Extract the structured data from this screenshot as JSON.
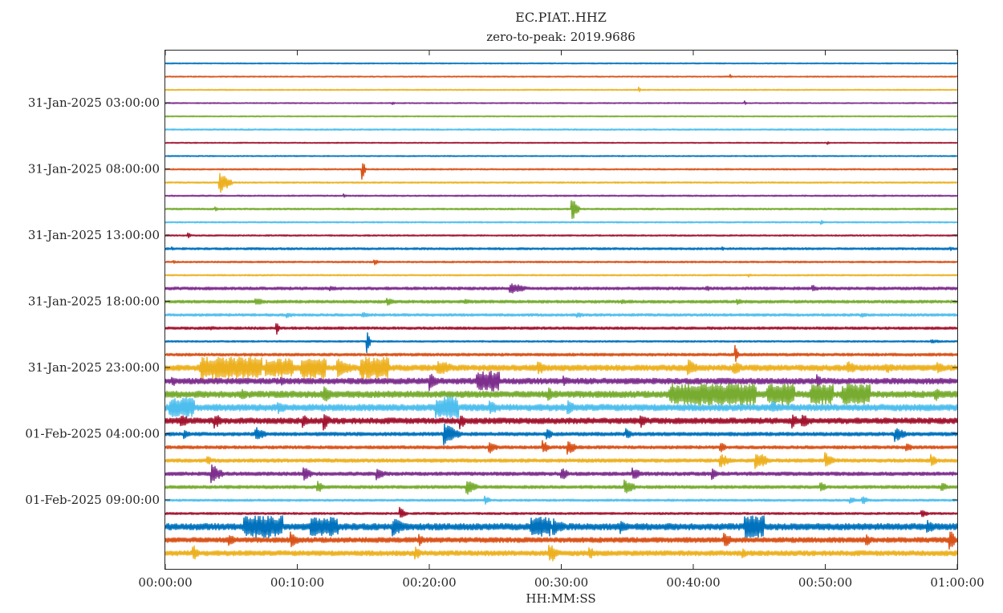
{
  "chart_data": {
    "type": "line",
    "subtype": "helicorder",
    "title": "EC.PIAT..HHZ",
    "subtitle": "zero-to-peak:  2019.9686",
    "xlabel": "HH:MM:SS",
    "ylabel": "",
    "x_tick_labels": [
      "00:00:00",
      "00:10:00",
      "00:20:00",
      "00:30:00",
      "00:40:00",
      "00:50:00",
      "01:00:00"
    ],
    "x_range_minutes": [
      0,
      60
    ],
    "row_duration_minutes": 60,
    "num_rows": 38,
    "y_tick_labels": [
      {
        "row": 3,
        "label": "31-Jan-2025 03:00:00"
      },
      {
        "row": 8,
        "label": "31-Jan-2025 08:00:00"
      },
      {
        "row": 13,
        "label": "31-Jan-2025 13:00:00"
      },
      {
        "row": 18,
        "label": "31-Jan-2025 18:00:00"
      },
      {
        "row": 23,
        "label": "31-Jan-2025 23:00:00"
      },
      {
        "row": 28,
        "label": "01-Feb-2025 04:00:00"
      },
      {
        "row": 33,
        "label": "01-Feb-2025 09:00:00"
      }
    ],
    "row_colors": [
      "#0072BD",
      "#D95319",
      "#EDB120",
      "#7E2F8E",
      "#77AC30",
      "#4DBEEE",
      "#A2142F"
    ],
    "grid": false,
    "legend": "none",
    "rows": [
      {
        "row": 0,
        "level": 0.08,
        "events": []
      },
      {
        "row": 1,
        "level": 0.08,
        "events": [
          {
            "t": 42.8,
            "amp": 0.3,
            "dur": 0.2
          }
        ]
      },
      {
        "row": 2,
        "level": 0.08,
        "events": [
          {
            "t": 35.9,
            "amp": 0.35,
            "dur": 0.2
          }
        ]
      },
      {
        "row": 3,
        "level": 0.08,
        "events": [
          {
            "t": 17.2,
            "amp": 0.3,
            "dur": 0.2
          },
          {
            "t": 43.9,
            "amp": 0.3,
            "dur": 0.2
          }
        ]
      },
      {
        "row": 4,
        "level": 0.08,
        "events": []
      },
      {
        "row": 5,
        "level": 0.1,
        "events": []
      },
      {
        "row": 6,
        "level": 0.08,
        "events": [
          {
            "t": 50.2,
            "amp": 0.25,
            "dur": 0.2
          }
        ]
      },
      {
        "row": 7,
        "level": 0.08,
        "events": []
      },
      {
        "row": 8,
        "level": 0.1,
        "events": [
          {
            "t": 14.9,
            "amp": 1.5,
            "dur": 0.3
          }
        ]
      },
      {
        "row": 9,
        "level": 0.1,
        "events": [
          {
            "t": 4.1,
            "amp": 1.5,
            "dur": 1.0
          }
        ]
      },
      {
        "row": 10,
        "level": 0.1,
        "events": [
          {
            "t": 13.5,
            "amp": 0.3,
            "dur": 0.3
          }
        ]
      },
      {
        "row": 11,
        "level": 0.12,
        "events": [
          {
            "t": 30.8,
            "amp": 1.6,
            "dur": 0.6
          },
          {
            "t": 3.8,
            "amp": 0.3,
            "dur": 0.3
          }
        ]
      },
      {
        "row": 12,
        "level": 0.1,
        "events": [
          {
            "t": 49.7,
            "amp": 0.3,
            "dur": 0.3
          }
        ]
      },
      {
        "row": 13,
        "level": 0.1,
        "events": [
          {
            "t": 1.7,
            "amp": 0.5,
            "dur": 0.3
          }
        ]
      },
      {
        "row": 14,
        "level": 0.15,
        "events": [
          {
            "t": 0.5,
            "amp": 0.3,
            "dur": 0.3
          },
          {
            "t": 42.2,
            "amp": 0.3,
            "dur": 0.3
          },
          {
            "t": 59.5,
            "amp": 0.3,
            "dur": 0.3
          }
        ]
      },
      {
        "row": 15,
        "level": 0.12,
        "events": [
          {
            "t": 15.8,
            "amp": 0.5,
            "dur": 0.4
          },
          {
            "t": 0.6,
            "amp": 0.25,
            "dur": 0.3
          }
        ]
      },
      {
        "row": 16,
        "level": 0.1,
        "events": [
          {
            "t": 44.2,
            "amp": 0.25,
            "dur": 0.3
          }
        ]
      },
      {
        "row": 17,
        "level": 0.2,
        "events": [
          {
            "t": 26.1,
            "amp": 0.8,
            "dur": 1.5
          },
          {
            "t": 12.5,
            "amp": 0.4,
            "dur": 0.8
          },
          {
            "t": 49.0,
            "amp": 0.5,
            "dur": 0.8
          },
          {
            "t": 41.0,
            "amp": 0.35,
            "dur": 0.8
          }
        ]
      },
      {
        "row": 18,
        "level": 0.2,
        "events": [
          {
            "t": 6.8,
            "amp": 0.5,
            "dur": 1.0
          },
          {
            "t": 16.8,
            "amp": 0.5,
            "dur": 1.0
          },
          {
            "t": 22.7,
            "amp": 0.4,
            "dur": 0.8
          },
          {
            "t": 34.6,
            "amp": 0.35,
            "dur": 0.8
          },
          {
            "t": 43.3,
            "amp": 0.4,
            "dur": 0.8
          }
        ]
      },
      {
        "row": 19,
        "level": 0.18,
        "events": [
          {
            "t": 9.2,
            "amp": 0.4,
            "dur": 0.8
          },
          {
            "t": 14.9,
            "amp": 0.4,
            "dur": 0.8
          },
          {
            "t": 31.2,
            "amp": 0.4,
            "dur": 0.8
          },
          {
            "t": 52.7,
            "amp": 0.4,
            "dur": 0.8
          }
        ]
      },
      {
        "row": 20,
        "level": 0.18,
        "events": [
          {
            "t": 8.4,
            "amp": 1.0,
            "dur": 0.3
          },
          {
            "t": 3.5,
            "amp": 0.3,
            "dur": 0.5
          }
        ]
      },
      {
        "row": 21,
        "level": 0.12,
        "events": [
          {
            "t": 15.3,
            "amp": 1.4,
            "dur": 0.3
          },
          {
            "t": 58.0,
            "amp": 0.25,
            "dur": 1.5
          }
        ]
      },
      {
        "row": 22,
        "level": 0.2,
        "events": [
          {
            "t": 43.2,
            "amp": 1.2,
            "dur": 0.3
          },
          {
            "t": 0.5,
            "amp": 0.25,
            "dur": 0.3
          }
        ]
      },
      {
        "row": 23,
        "level": 0.4,
        "events": [
          {
            "t": 2.5,
            "amp": 1.5,
            "dur": 4.8
          },
          {
            "t": 7.5,
            "amp": 1.3,
            "dur": 2.2
          },
          {
            "t": 10.2,
            "amp": 1.5,
            "dur": 2.0
          },
          {
            "t": 13.0,
            "amp": 1.4,
            "dur": 1.5
          },
          {
            "t": 14.7,
            "amp": 1.5,
            "dur": 2.2
          },
          {
            "t": 20.6,
            "amp": 1.2,
            "dur": 1.5
          },
          {
            "t": 28.2,
            "amp": 1.0,
            "dur": 1.0
          },
          {
            "t": 39.6,
            "amp": 1.2,
            "dur": 1.0
          },
          {
            "t": 43.0,
            "amp": 1.0,
            "dur": 1.0
          },
          {
            "t": 51.7,
            "amp": 1.0,
            "dur": 1.0
          },
          {
            "t": 54.6,
            "amp": 0.8,
            "dur": 1.0
          },
          {
            "t": 58.5,
            "amp": 0.9,
            "dur": 1.0
          }
        ]
      },
      {
        "row": 24,
        "level": 0.4,
        "events": [
          {
            "t": 20.0,
            "amp": 1.3,
            "dur": 0.8
          },
          {
            "t": 23.5,
            "amp": 1.4,
            "dur": 1.8
          },
          {
            "t": 0.5,
            "amp": 0.8,
            "dur": 0.6
          },
          {
            "t": 8.8,
            "amp": 0.8,
            "dur": 0.6
          },
          {
            "t": 30.2,
            "amp": 0.8,
            "dur": 0.6
          },
          {
            "t": 49.4,
            "amp": 0.9,
            "dur": 0.6
          }
        ]
      },
      {
        "row": 25,
        "level": 0.45,
        "events": [
          {
            "t": 38.0,
            "amp": 1.5,
            "dur": 6.8
          },
          {
            "t": 45.5,
            "amp": 1.5,
            "dur": 2.2
          },
          {
            "t": 48.8,
            "amp": 1.4,
            "dur": 1.8
          },
          {
            "t": 51.2,
            "amp": 1.5,
            "dur": 2.2
          },
          {
            "t": 12.0,
            "amp": 1.2,
            "dur": 0.9
          },
          {
            "t": 5.8,
            "amp": 1.0,
            "dur": 0.6
          },
          {
            "t": 29.0,
            "amp": 1.0,
            "dur": 0.6
          },
          {
            "t": 58.3,
            "amp": 1.0,
            "dur": 0.8
          }
        ]
      },
      {
        "row": 26,
        "level": 0.45,
        "events": [
          {
            "t": 0.2,
            "amp": 1.4,
            "dur": 2.0
          },
          {
            "t": 8.5,
            "amp": 1.0,
            "dur": 1.0
          },
          {
            "t": 20.4,
            "amp": 1.5,
            "dur": 1.8
          },
          {
            "t": 24.6,
            "amp": 1.1,
            "dur": 0.8
          },
          {
            "t": 30.5,
            "amp": 1.0,
            "dur": 0.8
          },
          {
            "t": 46.0,
            "amp": 0.9,
            "dur": 0.8
          }
        ]
      },
      {
        "row": 27,
        "level": 0.4,
        "events": [
          {
            "t": 1.2,
            "amp": 1.0,
            "dur": 0.8
          },
          {
            "t": 3.7,
            "amp": 1.1,
            "dur": 0.8
          },
          {
            "t": 10.4,
            "amp": 1.1,
            "dur": 0.6
          },
          {
            "t": 12.0,
            "amp": 1.3,
            "dur": 0.6
          },
          {
            "t": 22.3,
            "amp": 1.2,
            "dur": 0.6
          },
          {
            "t": 36.0,
            "amp": 1.0,
            "dur": 0.6
          },
          {
            "t": 47.5,
            "amp": 1.0,
            "dur": 0.6
          },
          {
            "t": 48.2,
            "amp": 1.2,
            "dur": 0.8
          }
        ]
      },
      {
        "row": 28,
        "level": 0.25,
        "events": [
          {
            "t": 21.1,
            "amp": 1.5,
            "dur": 1.4
          },
          {
            "t": 6.8,
            "amp": 1.0,
            "dur": 1.0
          },
          {
            "t": 1.4,
            "amp": 0.8,
            "dur": 0.6
          },
          {
            "t": 28.9,
            "amp": 0.8,
            "dur": 0.6
          },
          {
            "t": 34.9,
            "amp": 0.8,
            "dur": 0.6
          },
          {
            "t": 55.3,
            "amp": 1.0,
            "dur": 1.0
          }
        ]
      },
      {
        "row": 29,
        "level": 0.22,
        "events": [
          {
            "t": 24.5,
            "amp": 0.9,
            "dur": 0.8
          },
          {
            "t": 28.6,
            "amp": 1.0,
            "dur": 0.6
          },
          {
            "t": 30.5,
            "amp": 1.0,
            "dur": 0.8
          },
          {
            "t": 42.0,
            "amp": 0.8,
            "dur": 0.6
          },
          {
            "t": 56.1,
            "amp": 0.8,
            "dur": 0.6
          }
        ]
      },
      {
        "row": 30,
        "level": 0.25,
        "events": [
          {
            "t": 42.0,
            "amp": 1.0,
            "dur": 1.0
          },
          {
            "t": 44.7,
            "amp": 1.3,
            "dur": 1.2
          },
          {
            "t": 50.0,
            "amp": 1.1,
            "dur": 0.8
          },
          {
            "t": 58.0,
            "amp": 0.9,
            "dur": 0.6
          },
          {
            "t": 3.2,
            "amp": 0.6,
            "dur": 0.6
          }
        ]
      },
      {
        "row": 31,
        "level": 0.25,
        "events": [
          {
            "t": 3.5,
            "amp": 1.3,
            "dur": 1.0
          },
          {
            "t": 10.5,
            "amp": 1.0,
            "dur": 0.8
          },
          {
            "t": 16.0,
            "amp": 1.0,
            "dur": 0.8
          },
          {
            "t": 30.0,
            "amp": 0.9,
            "dur": 0.8
          },
          {
            "t": 35.4,
            "amp": 0.9,
            "dur": 0.8
          },
          {
            "t": 41.4,
            "amp": 0.8,
            "dur": 0.6
          }
        ]
      },
      {
        "row": 32,
        "level": 0.22,
        "events": [
          {
            "t": 11.5,
            "amp": 0.9,
            "dur": 0.6
          },
          {
            "t": 22.8,
            "amp": 1.1,
            "dur": 1.0
          },
          {
            "t": 34.8,
            "amp": 1.0,
            "dur": 1.0
          },
          {
            "t": 49.6,
            "amp": 0.8,
            "dur": 0.6
          },
          {
            "t": 58.8,
            "amp": 0.8,
            "dur": 0.6
          }
        ]
      },
      {
        "row": 33,
        "level": 0.15,
        "events": [
          {
            "t": 24.2,
            "amp": 0.6,
            "dur": 0.6
          },
          {
            "t": 51.9,
            "amp": 0.5,
            "dur": 0.6
          },
          {
            "t": 52.8,
            "amp": 0.6,
            "dur": 0.6
          }
        ]
      },
      {
        "row": 34,
        "level": 0.15,
        "events": [
          {
            "t": 17.8,
            "amp": 0.8,
            "dur": 0.6
          },
          {
            "t": 57.3,
            "amp": 0.6,
            "dur": 0.6
          }
        ]
      },
      {
        "row": 35,
        "level": 0.45,
        "events": [
          {
            "t": 5.8,
            "amp": 1.5,
            "dur": 3.1
          },
          {
            "t": 10.9,
            "amp": 1.3,
            "dur": 2.2
          },
          {
            "t": 17.2,
            "amp": 1.3,
            "dur": 1.2
          },
          {
            "t": 27.6,
            "amp": 1.4,
            "dur": 1.6
          },
          {
            "t": 29.4,
            "amp": 1.2,
            "dur": 1.2
          },
          {
            "t": 43.8,
            "amp": 1.5,
            "dur": 1.6
          },
          {
            "t": 57.7,
            "amp": 1.0,
            "dur": 0.8
          },
          {
            "t": 34.5,
            "amp": 1.0,
            "dur": 0.8
          }
        ]
      },
      {
        "row": 36,
        "level": 0.35,
        "events": [
          {
            "t": 59.4,
            "amp": 1.5,
            "dur": 0.6
          },
          {
            "t": 9.5,
            "amp": 1.1,
            "dur": 0.8
          },
          {
            "t": 4.8,
            "amp": 0.9,
            "dur": 0.6
          },
          {
            "t": 42.3,
            "amp": 1.1,
            "dur": 0.8
          },
          {
            "t": 53.1,
            "amp": 0.9,
            "dur": 0.6
          },
          {
            "t": 19.2,
            "amp": 0.9,
            "dur": 0.6
          }
        ]
      },
      {
        "row": 37,
        "level": 0.35,
        "events": [
          {
            "t": 29.1,
            "amp": 1.5,
            "dur": 0.8
          },
          {
            "t": 2.1,
            "amp": 1.2,
            "dur": 0.6
          },
          {
            "t": 18.9,
            "amp": 1.0,
            "dur": 0.6
          },
          {
            "t": 32.1,
            "amp": 1.0,
            "dur": 0.6
          },
          {
            "t": 43.7,
            "amp": 0.8,
            "dur": 0.5
          }
        ]
      }
    ]
  }
}
